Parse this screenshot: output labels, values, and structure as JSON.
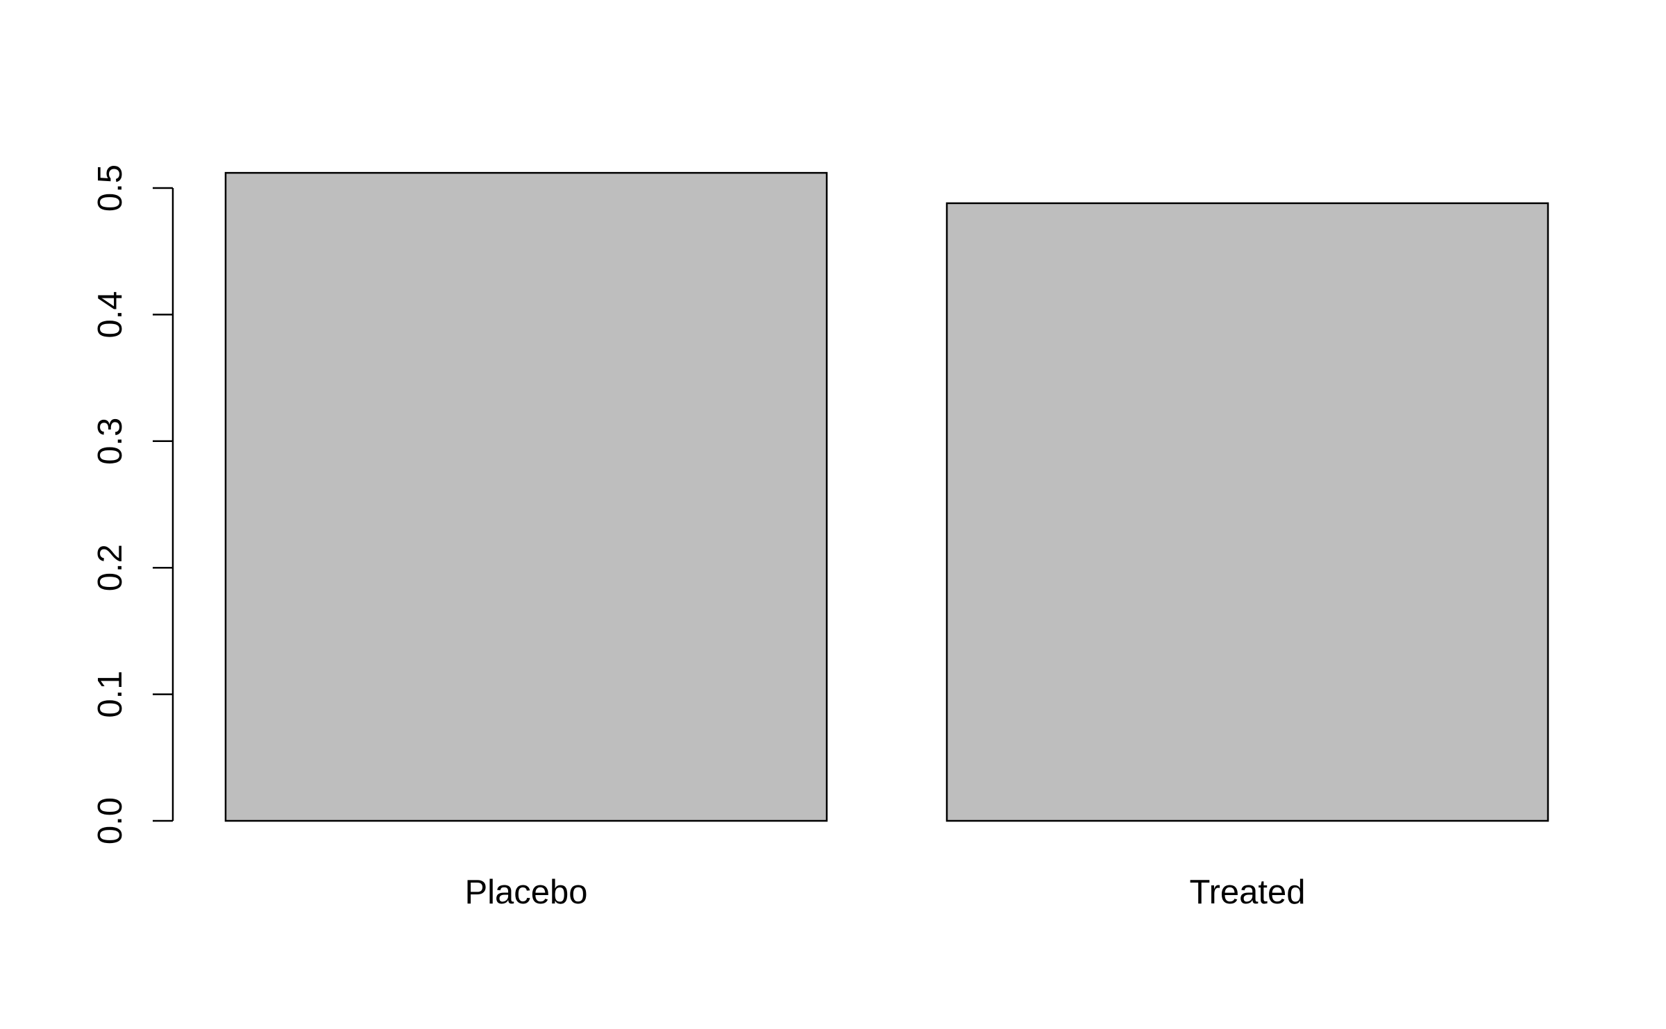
{
  "chart_data": {
    "type": "bar",
    "categories": [
      "Placebo",
      "Treated"
    ],
    "values": [
      0.512,
      0.488
    ],
    "title": "",
    "xlabel": "",
    "ylabel": "",
    "ylim": [
      0,
      0.5
    ],
    "yticks": [
      0,
      0.1,
      0.2,
      0.3,
      0.4,
      0.5
    ],
    "ytick_labels": [
      "0.0",
      "0.1",
      "0.2",
      "0.3",
      "0.4",
      "0.5"
    ],
    "bar_color": "#bebebe",
    "bar_border_color": "#000000",
    "grid": false,
    "legend": "none"
  }
}
